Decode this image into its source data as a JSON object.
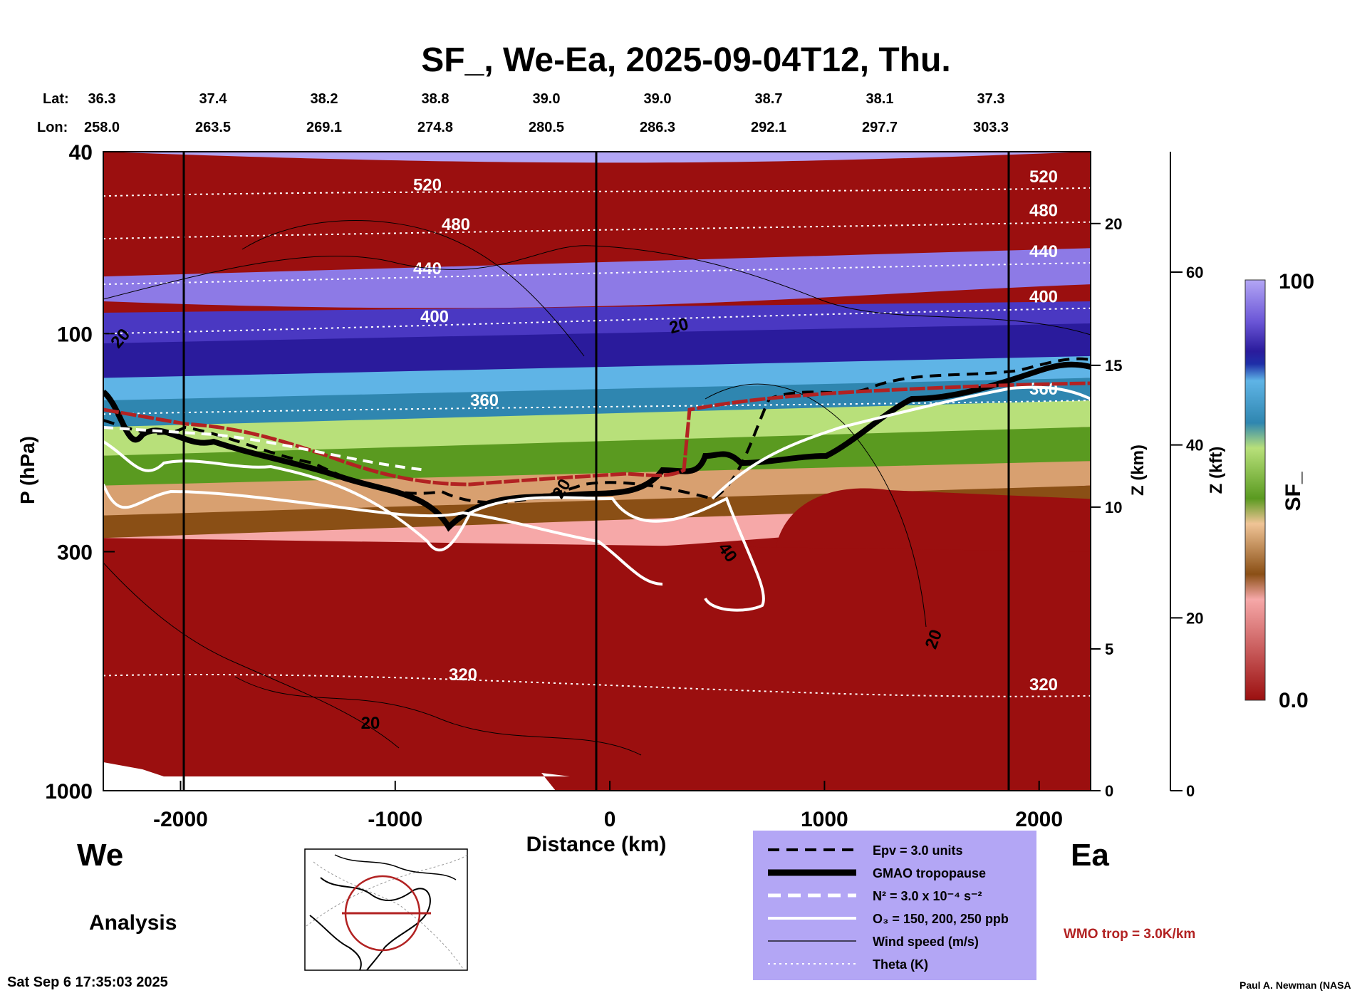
{
  "chart_data": {
    "type": "heatmap",
    "title": "SF_, We-Ea, 2025-09-04T12, Thu.",
    "xlabel": "Distance (km)",
    "ylabel": "P (hPa)",
    "z_label": "Z (km)",
    "zkft_label": "Z (kft)",
    "x_ticks": [
      -2000,
      -1000,
      0,
      1000,
      2000
    ],
    "x_range": [
      -2360,
      2240
    ],
    "y_ticks": [
      40,
      100,
      300,
      1000
    ],
    "y_range": [
      40,
      1000
    ],
    "y_scale": "log",
    "z_ticks": [
      0,
      5,
      10,
      15,
      20
    ],
    "zkft_ticks": [
      0,
      20,
      40,
      60
    ],
    "lat_label": "Lat:",
    "lon_label": "Lon:",
    "lat": [
      "36.3",
      "37.4",
      "38.2",
      "38.8",
      "39.0",
      "39.0",
      "38.7",
      "38.1",
      "37.3"
    ],
    "lon": [
      "258.0",
      "263.5",
      "269.1",
      "274.8",
      "280.5",
      "286.3",
      "292.1",
      "297.7",
      "303.3"
    ],
    "colorbar": {
      "label": "SF_",
      "max_label": "100",
      "min_label": "0.0",
      "range": [
        0,
        100
      ]
    },
    "theta_contours": [
      {
        "label": "520",
        "p_west": 50,
        "p_east": 48
      },
      {
        "label": "480",
        "p_west": 62,
        "p_east": 57
      },
      {
        "label": "440",
        "p_west": 78,
        "p_east": 70
      },
      {
        "label": "400",
        "p_west": 100,
        "p_east": 88
      },
      {
        "label": "360",
        "p_west": 150,
        "p_east": 140
      },
      {
        "label": "320",
        "p_west": 560,
        "p_east": 620
      }
    ],
    "wind_labels": [
      "20",
      "20",
      "20",
      "40",
      "20",
      "20"
    ],
    "west_label": "We",
    "east_label": "Ea",
    "mode_label": "Analysis",
    "legend": [
      {
        "name": "Epv = 3.0 units",
        "style": "dashed-black"
      },
      {
        "name": "GMAO tropopause",
        "style": "thick-black"
      },
      {
        "name": "N² = 3.0 x 10⁻⁴ s⁻²",
        "style": "dashed-white"
      },
      {
        "name": "O₃ = 150, 200, 250 ppb",
        "style": "solid-white"
      },
      {
        "name": "Wind speed (m/s)",
        "style": "thin-black"
      },
      {
        "name": "Theta (K)",
        "style": "dotted-white"
      }
    ],
    "wmo_label": "WMO trop = 3.0K/km",
    "colors": {
      "wmo": "#b22222",
      "legend_bg": "#b3a6f5",
      "lowfield": "#9b0f0f"
    },
    "timestamp": "Sat Sep  6 17:35:03 2025",
    "credit": "Paul A. Newman (NASA"
  }
}
